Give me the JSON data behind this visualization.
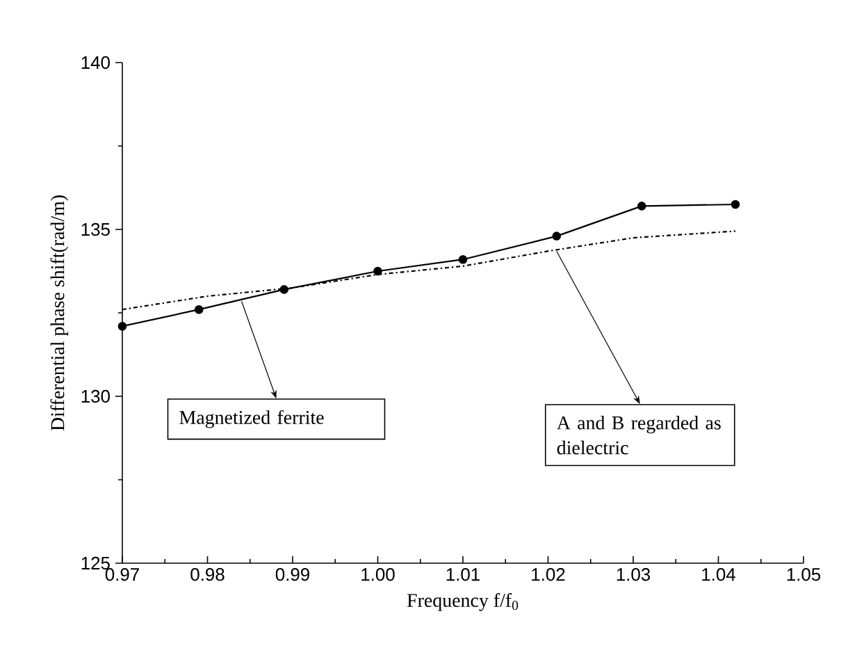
{
  "chart_data": {
    "type": "line",
    "xlabel": "Frequency f/f$_{0}$",
    "ylabel": "Differential phase shift(rad/m)",
    "xlim": [
      0.97,
      1.05
    ],
    "xticks": [
      {
        "value": 0.97,
        "label": "0.97"
      },
      {
        "value": 0.98,
        "label": "0.98"
      },
      {
        "value": 0.99,
        "label": "0.99"
      },
      {
        "value": 1.0,
        "label": "1.00"
      },
      {
        "value": 1.01,
        "label": "1.01"
      },
      {
        "value": 1.02,
        "label": "1.02"
      },
      {
        "value": 1.03,
        "label": "1.03"
      },
      {
        "value": 1.04,
        "label": "1.04"
      },
      {
        "value": 1.05,
        "label": "1.05"
      }
    ],
    "ylim": [
      125,
      140
    ],
    "yticks": [
      125,
      130,
      135,
      140
    ],
    "series": [
      {
        "color": "#000000",
        "marker": "circle",
        "line_style": "solid",
        "x": [
          0.97,
          0.979,
          0.989,
          1.0,
          1.01,
          1.021,
          1.031,
          1.042
        ],
        "values": [
          132.1,
          132.6,
          133.2,
          133.75,
          134.1,
          134.8,
          135.7,
          135.75
        ]
      },
      {
        "color": "#000000",
        "marker": "none",
        "line_style": "dashdot",
        "x": [
          0.97,
          0.98,
          0.99,
          1.0,
          1.01,
          1.02,
          1.03,
          1.042
        ],
        "values": [
          132.6,
          133.0,
          133.25,
          133.65,
          133.9,
          134.35,
          134.75,
          134.95
        ]
      }
    ],
    "annotations": [
      {
        "text": "Magnetized ferrite",
        "x": 0.984,
        "y": 132.85
      },
      {
        "text": "A and B regarded as dielectric",
        "x": 1.021,
        "y": 134.35
      }
    ]
  }
}
